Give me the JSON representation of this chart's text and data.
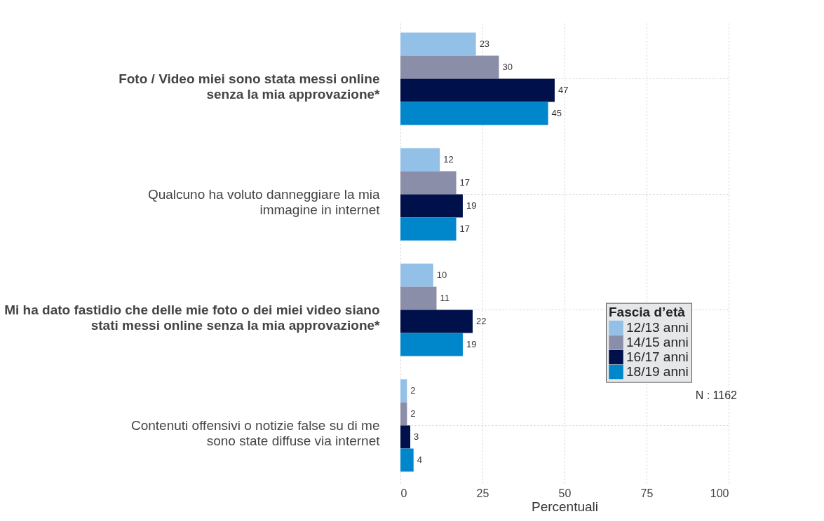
{
  "chart_data": {
    "type": "bar",
    "orientation": "horizontal",
    "xlabel": "Percentuali",
    "legend_title": "Fascia d’età",
    "legend": "right",
    "grid": true,
    "data_labels": true,
    "categories": [
      "Foto / Video miei sono stata messi online\nsenza la mia approvazione*",
      "Qualcuno ha voluto danneggiare la mia\nimmagine in internet",
      "Mi ha dato fastidio che delle mie foto o dei miei video siano\nstati messi online senza la mia approvazione*",
      "Contenuti offensivi o notizie false su di me\nsono state diffuse via internet"
    ],
    "series": [
      {
        "name": "12/13 anni",
        "color": "#93c0e6",
        "values": [
          23,
          12,
          10,
          2
        ]
      },
      {
        "name": "14/15 anni",
        "color": "#8a8ea8",
        "values": [
          30,
          17,
          11,
          2
        ]
      },
      {
        "name": "16/17 anni",
        "color": "#00104a",
        "values": [
          47,
          19,
          22,
          3
        ]
      },
      {
        "name": "18/19 anni",
        "color": "#0087cb",
        "values": [
          45,
          17,
          19,
          4
        ]
      }
    ],
    "xlim": [
      0,
      100
    ],
    "xticks": [
      0,
      25,
      50,
      75,
      100
    ],
    "annotations": [
      "N : 1162"
    ]
  }
}
